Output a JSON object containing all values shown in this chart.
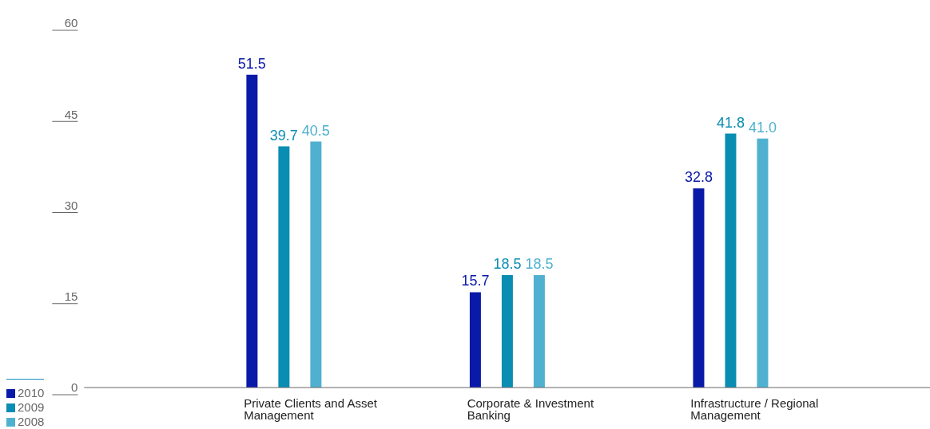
{
  "chart_data": {
    "type": "bar",
    "categories": [
      "Private Clients and Asset Management",
      "Corporate & Investment Banking",
      "Infrastructure / Regional Management"
    ],
    "series": [
      {
        "name": "2010",
        "color": "#0a1aa8",
        "values": [
          51.5,
          15.7,
          32.8
        ],
        "value_labels": [
          "51.5",
          "15.7",
          "32.8"
        ]
      },
      {
        "name": "2009",
        "color": "#0a8db3",
        "values": [
          39.7,
          18.5,
          41.8
        ],
        "value_labels": [
          "39.7",
          "18.5",
          "41.8"
        ]
      },
      {
        "name": "2008",
        "color": "#4fb1cf",
        "values": [
          40.5,
          18.5,
          41.0
        ],
        "value_labels": [
          "40.5",
          "18.5",
          "41.0"
        ]
      }
    ],
    "ylim": [
      0,
      60
    ],
    "yticks": [
      0,
      15,
      30,
      45,
      60
    ],
    "grid": false,
    "legend": "bottom left"
  }
}
